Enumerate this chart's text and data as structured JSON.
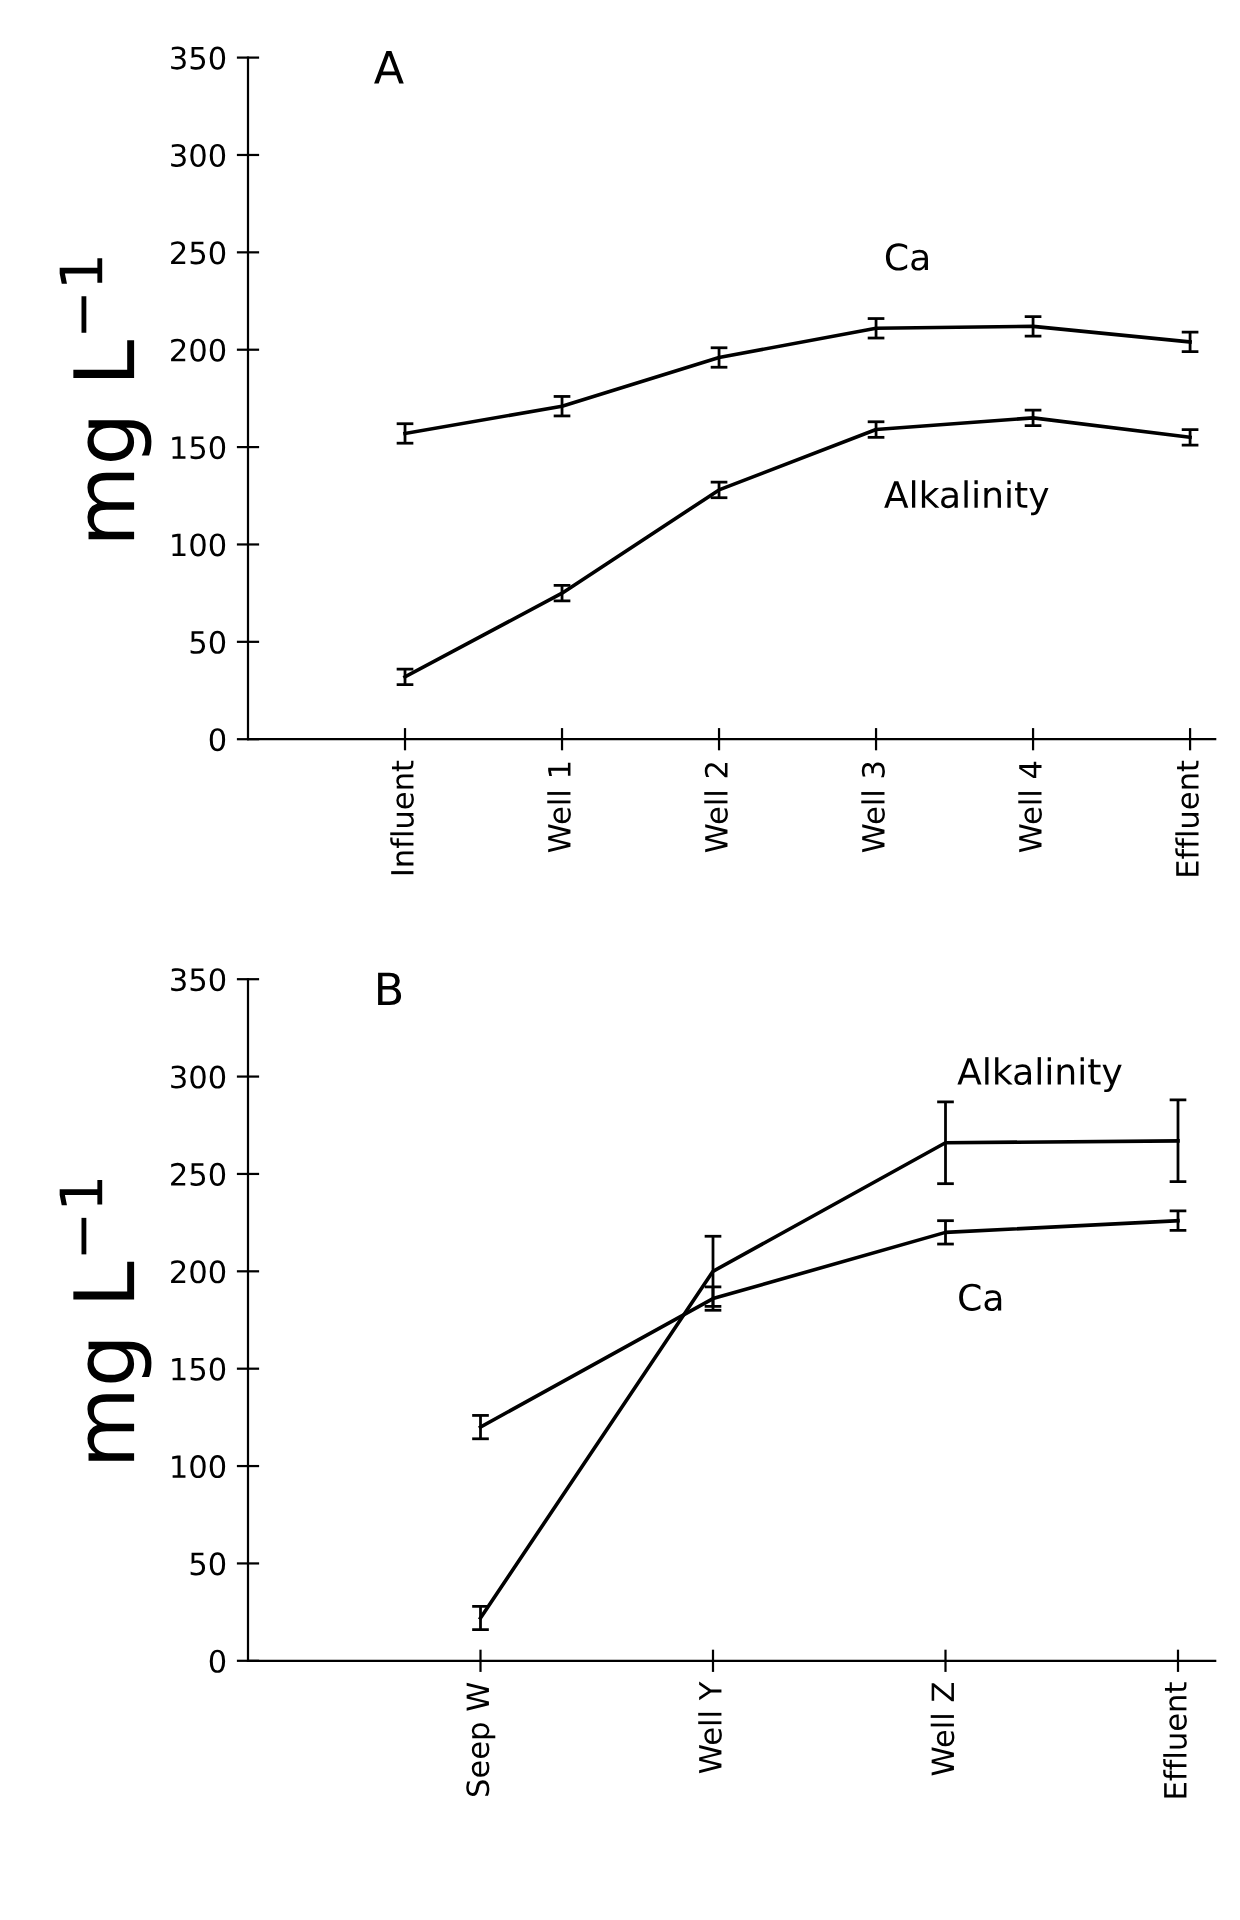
{
  "chart_data": [
    {
      "type": "line",
      "title": "A",
      "ylabel": "mg L$^{−1}$",
      "categories": [
        "Influent",
        "Well 1",
        "Well 2",
        "Well 3",
        "Well 4",
        "Effluent"
      ],
      "ylim": [
        0,
        350
      ],
      "yticks": [
        0,
        50,
        100,
        150,
        200,
        250,
        300,
        350
      ],
      "marker": "none",
      "line_style": "solid",
      "grid": false,
      "legend": false,
      "series": [
        {
          "name": "Ca",
          "color": "#000000",
          "values": [
            157,
            171,
            196,
            211,
            212,
            204
          ],
          "errors": [
            5,
            5,
            5,
            5,
            5,
            5
          ]
        },
        {
          "name": "Alkalinity",
          "color": "#000000",
          "values": [
            32,
            75,
            128,
            159,
            165,
            155
          ],
          "errors": [
            4,
            4,
            4,
            4,
            4,
            4
          ]
        }
      ]
    },
    {
      "type": "line",
      "title": "B",
      "ylabel": "mg L$^{−1}$",
      "categories": [
        "Seep W",
        "Well Y",
        "Well Z",
        "Effluent"
      ],
      "ylim": [
        0,
        350
      ],
      "yticks": [
        0,
        50,
        100,
        150,
        200,
        250,
        300,
        350
      ],
      "marker": "none",
      "line_style": "solid",
      "grid": false,
      "legend": false,
      "series": [
        {
          "name": "Alkalinity",
          "color": "#000000",
          "values": [
            22,
            200,
            266,
            267
          ],
          "errors": [
            6,
            18,
            21,
            21
          ]
        },
        {
          "name": "Ca",
          "color": "#000000",
          "values": [
            120,
            186,
            220,
            226
          ],
          "errors": [
            6,
            6,
            6,
            5
          ]
        }
      ]
    }
  ]
}
